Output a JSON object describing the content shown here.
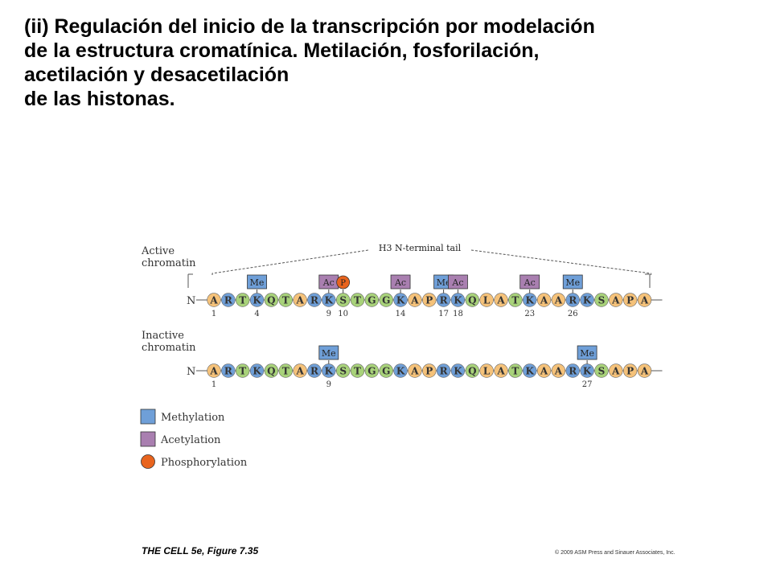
{
  "title_lines": [
    "(ii) Regulación del inicio de la transcripción por modelación",
    "de la estructura cromatínica. Metilación, fosforilación,",
    "acetilación y desacetilación",
    "de las histonas."
  ],
  "figure": {
    "tail_label": "H3 N-terminal tail",
    "n_label": "N",
    "sequence": [
      "A",
      "R",
      "T",
      "K",
      "Q",
      "T",
      "A",
      "R",
      "K",
      "S",
      "T",
      "G",
      "G",
      "K",
      "A",
      "P",
      "R",
      "K",
      "Q",
      "L",
      "A",
      "T",
      "K",
      "A",
      "A",
      "R",
      "K",
      "S",
      "A",
      "P",
      "A"
    ],
    "residue_colors": {
      "A": "#f5c27a",
      "R": "#6f9fd8",
      "T": "#a8d27a",
      "K": "#6f9fd8",
      "Q": "#a8d27a",
      "S": "#a8d27a",
      "G": "#a8d27a",
      "P": "#f5c27a",
      "L": "#f5c27a"
    },
    "rows": [
      {
        "label": [
          "Active",
          "chromatin"
        ],
        "marks": [
          {
            "pos": 4,
            "type": "Me"
          },
          {
            "pos": 9,
            "type": "Ac"
          },
          {
            "pos": 10,
            "type": "P"
          },
          {
            "pos": 14,
            "type": "Ac"
          },
          {
            "pos": 17,
            "type": "Me"
          },
          {
            "pos": 18,
            "type": "Ac"
          },
          {
            "pos": 23,
            "type": "Ac"
          },
          {
            "pos": 26,
            "type": "Me"
          }
        ],
        "numbers": [
          "1",
          "4",
          "9",
          "10",
          "14",
          "17",
          "18",
          "23",
          "26"
        ],
        "number_positions": [
          1,
          4,
          9,
          10,
          14,
          17,
          18,
          23,
          26
        ]
      },
      {
        "label": [
          "Inactive",
          "chromatin"
        ],
        "marks": [
          {
            "pos": 9,
            "type": "Me"
          },
          {
            "pos": 27,
            "type": "Me"
          }
        ],
        "numbers": [
          "1",
          "9",
          "27"
        ],
        "number_positions": [
          1,
          9,
          27
        ]
      }
    ],
    "legend": [
      {
        "type": "Me",
        "label": "Methylation"
      },
      {
        "type": "Ac",
        "label": "Acetylation"
      },
      {
        "type": "P",
        "label": "Phosphorylation"
      }
    ],
    "colors": {
      "methyl": "#6f9fd8",
      "acetyl": "#a97fb0",
      "phospho": "#e8641e",
      "line": "#555555"
    }
  },
  "caption": "THE CELL 5e, Figure 7.35",
  "copyright": "© 2009 ASM Press and Sinauer Associates, Inc."
}
